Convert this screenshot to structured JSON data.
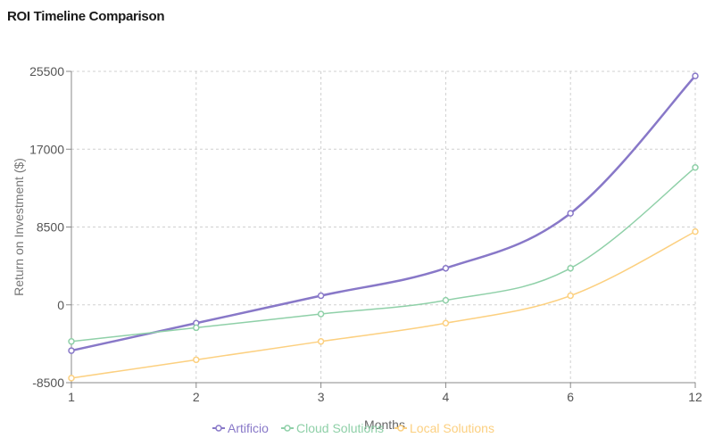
{
  "chart_data": {
    "type": "line",
    "title": "ROI Timeline Comparison",
    "xlabel": "Months",
    "ylabel": "Return on Investment ($)",
    "categories": [
      "1",
      "2",
      "3",
      "4",
      "6",
      "12"
    ],
    "ylim": [
      -8500,
      25500
    ],
    "yticks": [
      "-8500",
      "0",
      "8500",
      "17000",
      "25500"
    ],
    "grid": true,
    "legend_position": "bottom",
    "series": [
      {
        "name": "Artificio",
        "color": "#8878c8",
        "values": [
          -5000,
          -2000,
          1000,
          4000,
          10000,
          25000
        ]
      },
      {
        "name": "Cloud Solutions",
        "color": "#8fd0a8",
        "values": [
          -4000,
          -2500,
          -1000,
          500,
          4000,
          15000
        ]
      },
      {
        "name": "Local Solutions",
        "color": "#fcd080",
        "values": [
          -8000,
          -6000,
          -4000,
          -2000,
          1000,
          8000
        ]
      }
    ]
  }
}
